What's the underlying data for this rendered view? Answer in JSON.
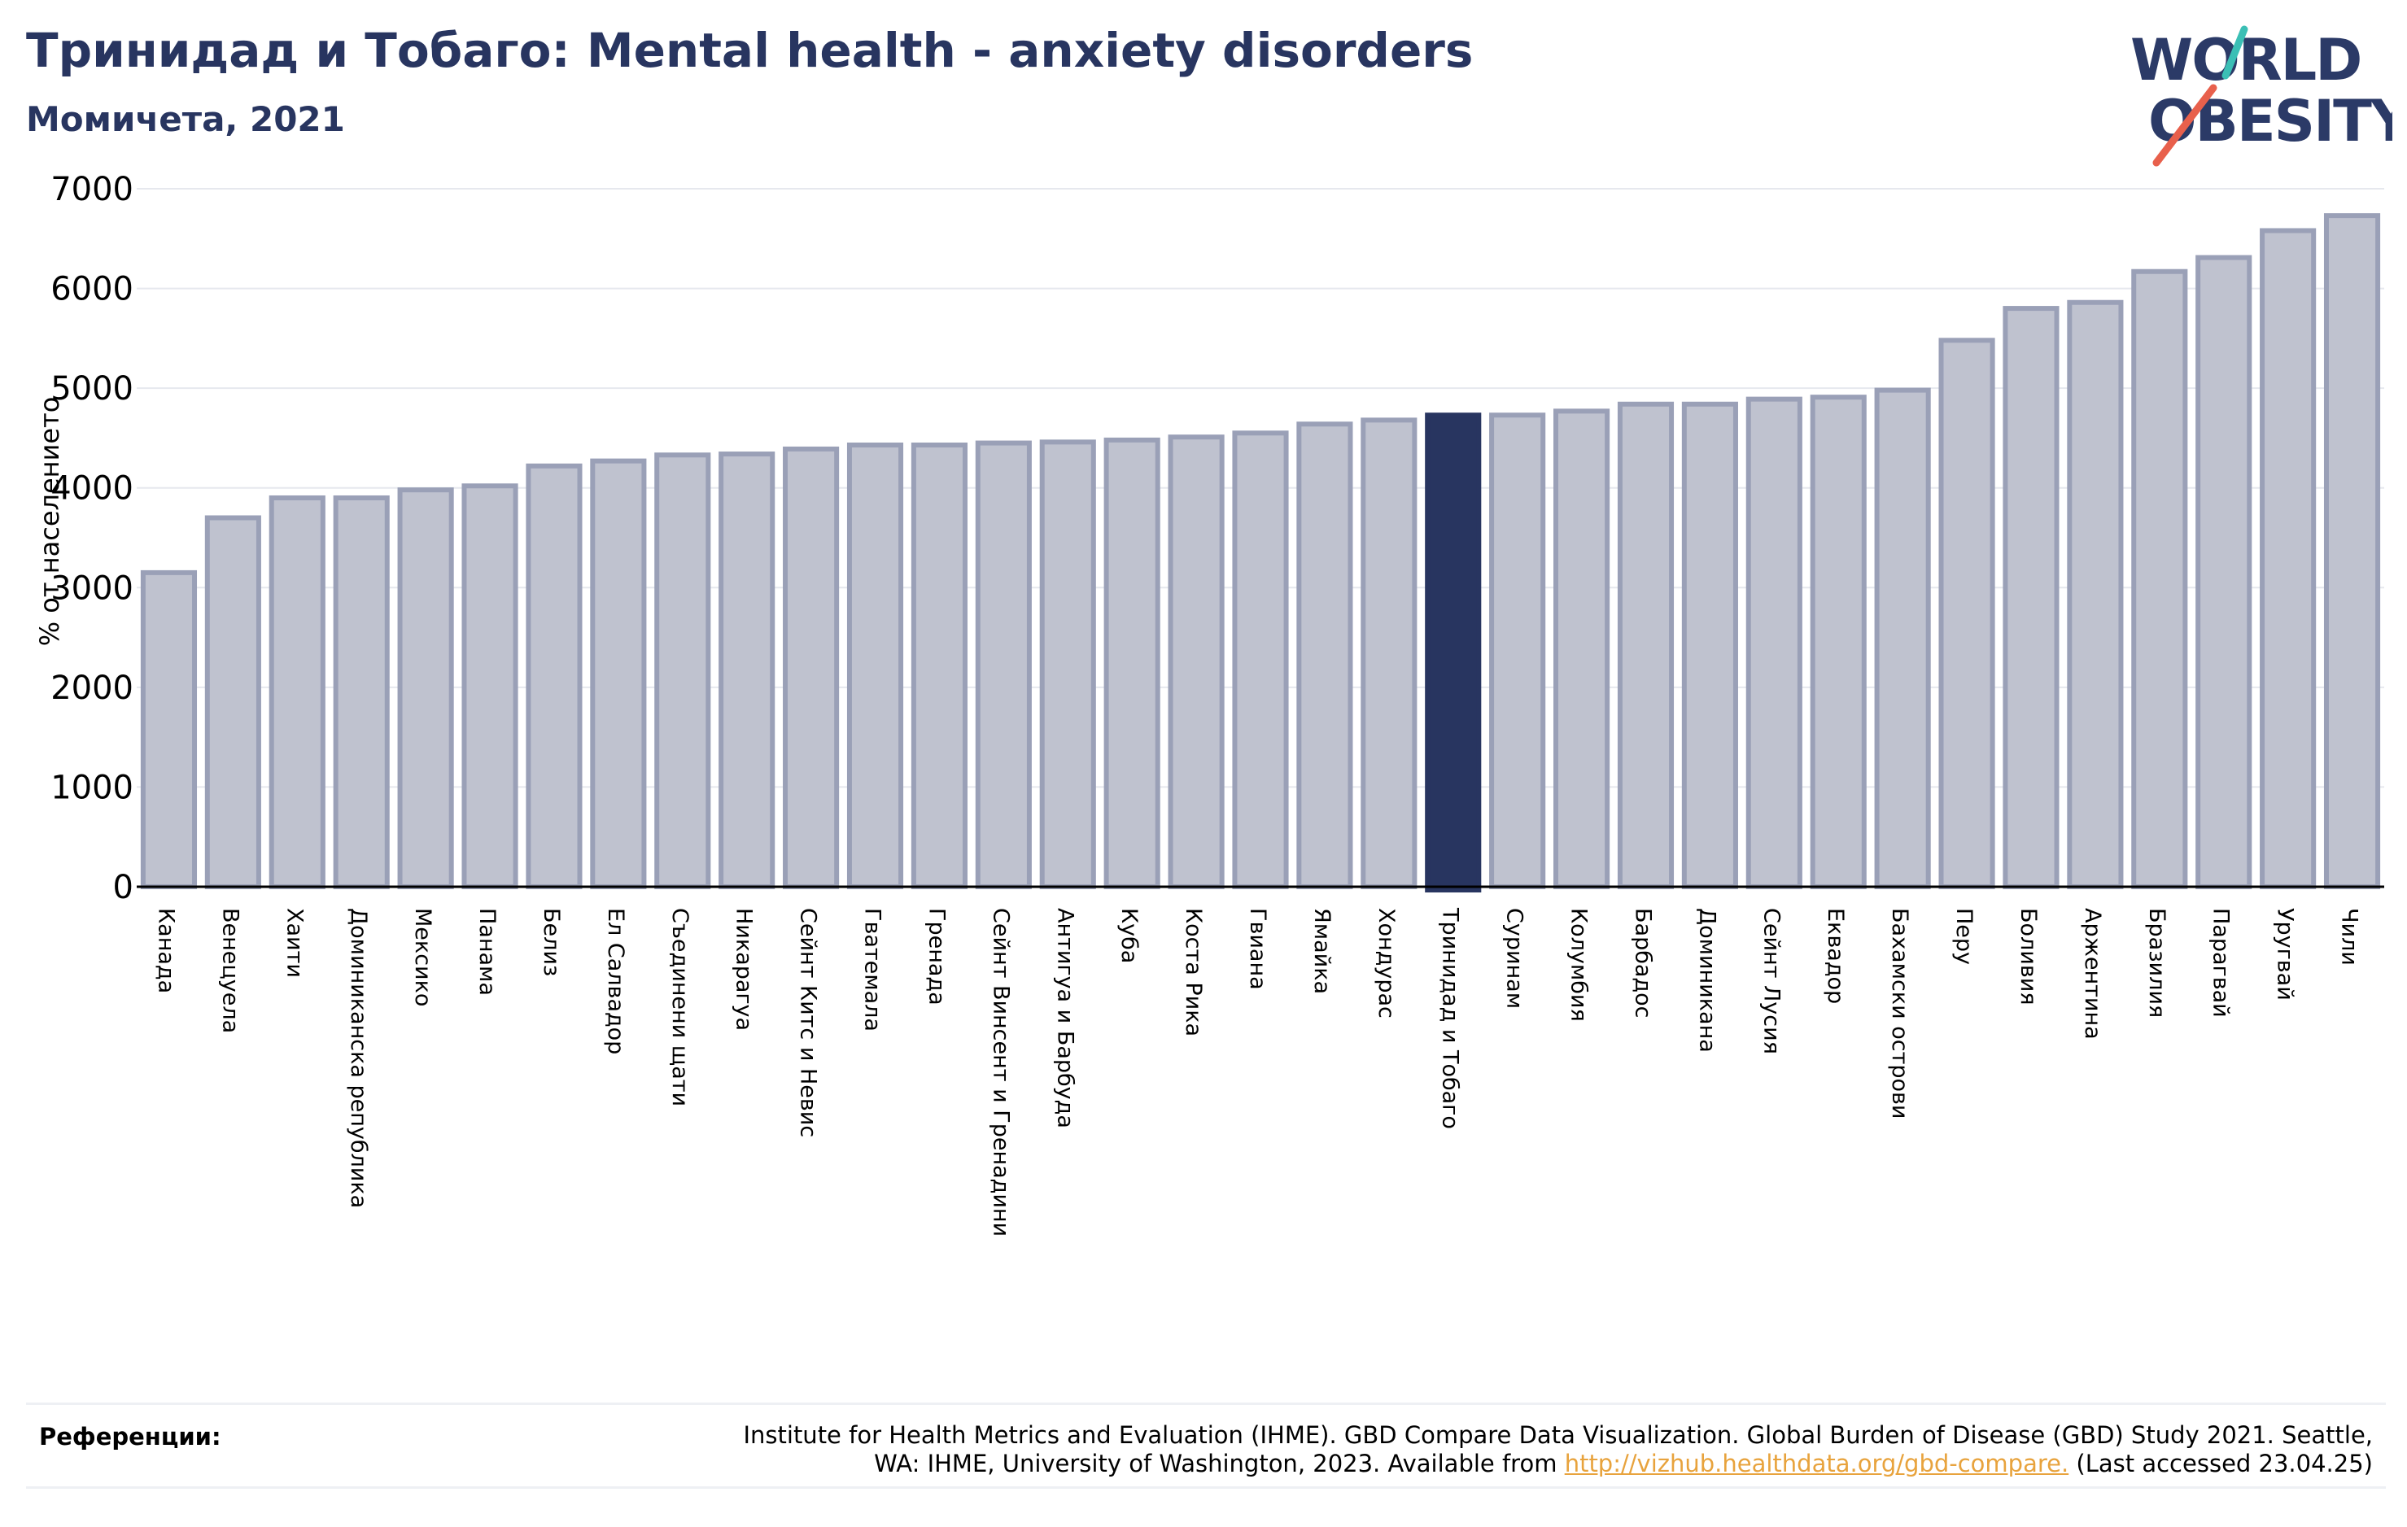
{
  "header": {
    "title": "Тринидад и Тобаго: Mental health - anxiety disorders",
    "subtitle": "Момичета, 2021"
  },
  "logo": {
    "line1": "WORLD",
    "line2": "OBESITY",
    "accent_teal": "#3bbfb5",
    "accent_red": "#e8604c",
    "text_color": "#2b3a67"
  },
  "colors": {
    "bar": "#bfc2cf",
    "bar_stroke": "#9aa0b7",
    "highlight": "#283560",
    "axis": "#000000",
    "grid": "#e6e8ee"
  },
  "chart_data": {
    "type": "bar",
    "ylabel": "% от населението",
    "ylim": [
      0,
      7000
    ],
    "yticks": [
      0,
      1000,
      2000,
      3000,
      4000,
      5000,
      6000,
      7000
    ],
    "grid": true,
    "highlight": "Тринидад и Тобаго",
    "categories": [
      "Канада",
      "Венецуела",
      "Хаити",
      "Доминиканска република",
      "Мексико",
      "Панама",
      "Белиз",
      "Ел Салвадор",
      "Съединени щати",
      "Никарагуа",
      "Сейнт Китс и Невис",
      "Гватемала",
      "Гренада",
      "Сейнт Винсент и Гренадини",
      "Антигуа и Барбуда",
      "Куба",
      "Коста Рика",
      "Гвиана",
      "Ямайка",
      "Хондурас",
      "Тринидад и Тобаго",
      "Суринам",
      "Колумбия",
      "Барбадос",
      "Доминикана",
      "Сейнт Лусия",
      "Еквадор",
      "Бахамски острови",
      "Перу",
      "Боливия",
      "Аржентина",
      "Бразилия",
      "Парагвай",
      "Уругвай",
      "Чили"
    ],
    "values": [
      3150,
      3700,
      3900,
      3900,
      3980,
      4020,
      4220,
      4270,
      4330,
      4340,
      4390,
      4430,
      4430,
      4450,
      4460,
      4480,
      4510,
      4550,
      4640,
      4680,
      4730,
      4730,
      4770,
      4840,
      4840,
      4890,
      4910,
      4980,
      5480,
      5800,
      5860,
      6170,
      6310,
      6580,
      6730
    ]
  },
  "references": {
    "label": "Референции:",
    "text_line1": "Institute for Health Metrics and Evaluation (IHME). GBD Compare Data Visualization. Global Burden of Disease (GBD) Study 2021. Seattle,",
    "text_line2_pre": "WA: IHME, University of Washington, 2023. Available from ",
    "link": "http://vizhub.healthdata.org/gbd-compare.",
    "text_line2_post": " (Last accessed 23.04.25)"
  }
}
